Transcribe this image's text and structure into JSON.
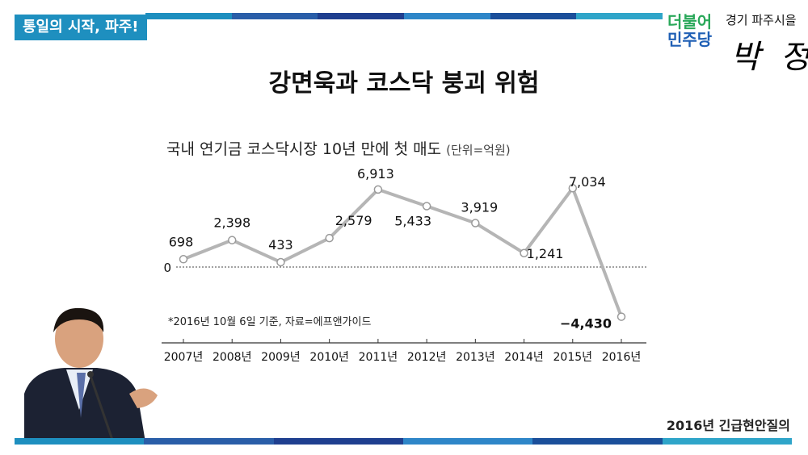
{
  "header": {
    "badge": "통일의 시작, 파주!",
    "party_line1": "더불어",
    "party_line2": "민주당",
    "district": "경기 파주시을",
    "signature": "박 정"
  },
  "slide_title": "강면욱과 코스닥 붕괴 위험",
  "footer": "2016년 긴급현안질의",
  "colors": {
    "accent_blue": "#1e8fbf",
    "bar_segments": [
      "#1e8fbf",
      "#2a5ea8",
      "#1f3f8f",
      "#2e86c8",
      "#1b4f9a",
      "#2fa5c9"
    ]
  },
  "chart_data": {
    "type": "line",
    "title": "국내 연기금 코스닥시장 10년 만에 첫 매도",
    "unit": "(단위=억원)",
    "categories": [
      "2007년",
      "2008년",
      "2009년",
      "2010년",
      "2011년",
      "2012년",
      "2013년",
      "2014년",
      "2015년",
      "2016년"
    ],
    "values": [
      698,
      2398,
      433,
      2579,
      6913,
      5433,
      3919,
      1241,
      7034,
      -4430
    ],
    "data_labels": [
      "698",
      "2,398",
      "433",
      "2,579",
      "6,913",
      "5,433",
      "3,919",
      "1,241",
      "7,034",
      "−4,430"
    ],
    "zero_label": "0",
    "footnote": "*2016년 10월 6일 기준, 자료=에프앤가이드",
    "line_color": "#b5b5b5"
  }
}
